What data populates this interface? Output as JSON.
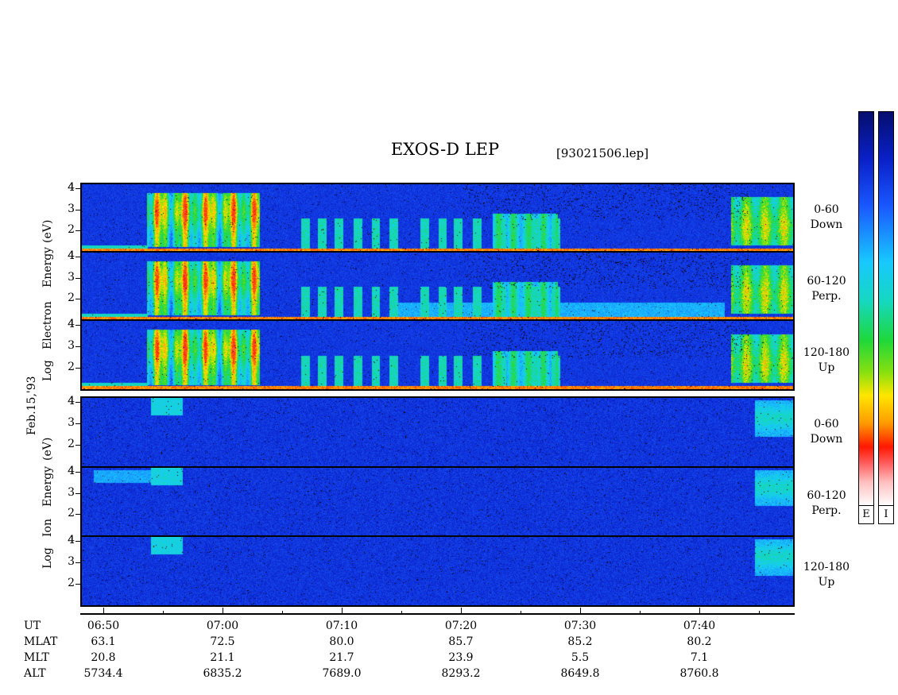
{
  "header": {
    "title": "EXOS-D LEP",
    "filename": "[93021506.lep]"
  },
  "date_label": "Feb.15,'93",
  "electron_axis": {
    "label_parts": [
      "Log",
      "Electron",
      "Energy",
      "(eV)"
    ]
  },
  "ion_axis": {
    "label_parts": [
      "Log",
      "Ion",
      "Energy",
      "(eV)"
    ]
  },
  "panels": [
    {
      "id": "e-down",
      "species": "electron",
      "angle": "0-60",
      "dir": "Down"
    },
    {
      "id": "e-perp",
      "species": "electron",
      "angle": "60-120",
      "dir": "Perp."
    },
    {
      "id": "e-up",
      "species": "electron",
      "angle": "120-180",
      "dir": "Up"
    },
    {
      "id": "i-down",
      "species": "ion",
      "angle": "0-60",
      "dir": "Down"
    },
    {
      "id": "i-perp",
      "species": "ion",
      "angle": "60-120",
      "dir": "Perp."
    },
    {
      "id": "i-up",
      "species": "ion",
      "angle": "120-180",
      "dir": "Up"
    }
  ],
  "colorbars": [
    {
      "label": "E"
    },
    {
      "label": "I"
    }
  ],
  "chart_data": {
    "type": "heatmap",
    "title": "EXOS-D LEP",
    "xlabel": "UT",
    "ylabel": "Log Energy (eV)",
    "x_ticks": [
      "06:50",
      "07:00",
      "07:10",
      "07:20",
      "07:30",
      "07:40"
    ],
    "y_ticks": [
      "2",
      "3",
      "4"
    ],
    "ylim": [
      1,
      4.2
    ],
    "ephemeris": {
      "rows": [
        "UT",
        "MLAT",
        "MLT",
        "ALT"
      ],
      "values": {
        "UT": [
          "06:50",
          "07:00",
          "07:10",
          "07:20",
          "07:30",
          "07:40"
        ],
        "MLAT": [
          "63.1",
          "72.5",
          "80.0",
          "85.7",
          "85.2",
          "80.2"
        ],
        "MLT": [
          "20.8",
          "21.1",
          "21.7",
          "23.9",
          "5.5",
          "7.1"
        ],
        "ALT": [
          "5734.4",
          "6835.2",
          "7689.0",
          "8293.2",
          "8649.8",
          "8760.8"
        ]
      }
    }
  }
}
